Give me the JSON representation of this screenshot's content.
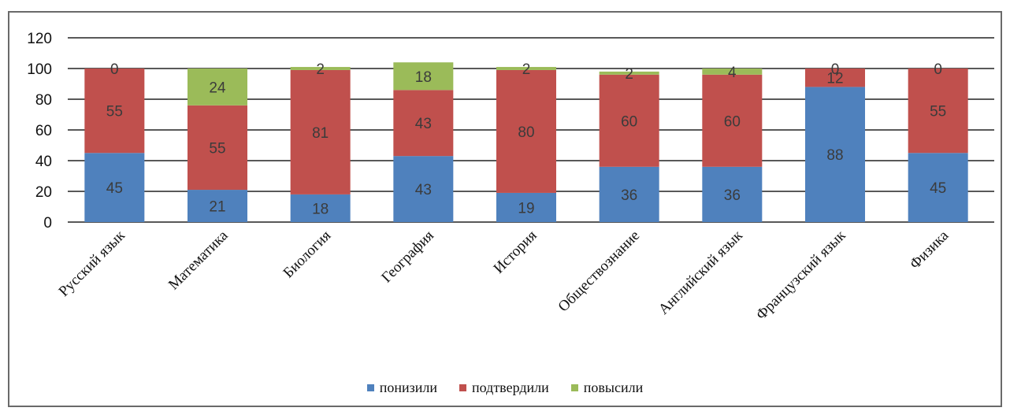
{
  "chart_data": {
    "type": "bar",
    "stacked": true,
    "categories": [
      "Русский язык",
      "Математика",
      "Биология",
      "География",
      "История",
      "Обществознание",
      "Английский язык",
      "Французский язык",
      "Физика"
    ],
    "series": [
      {
        "name": "понизили",
        "color": "#4f81bd",
        "values": [
          45,
          21,
          18,
          43,
          19,
          36,
          36,
          88,
          45
        ]
      },
      {
        "name": "подтвердили",
        "color": "#c0504d",
        "values": [
          55,
          55,
          81,
          43,
          80,
          60,
          60,
          12,
          55
        ]
      },
      {
        "name": "повысили",
        "color": "#9bbb59",
        "values": [
          0,
          24,
          2,
          18,
          2,
          2,
          4,
          0,
          0
        ]
      }
    ],
    "ylim": [
      0,
      120
    ],
    "yticks": [
      "0",
      "20",
      "40",
      "60",
      "80",
      "100",
      "120"
    ],
    "grid": true,
    "legend_position": "bottom"
  }
}
